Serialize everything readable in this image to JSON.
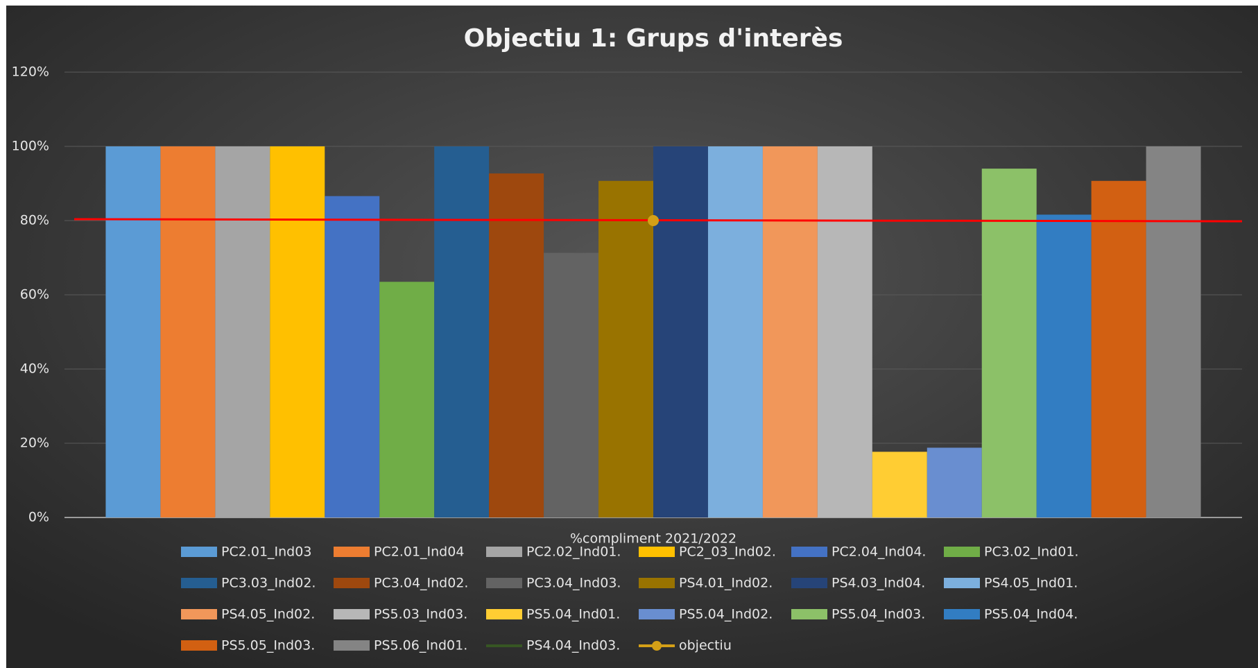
{
  "chart_data": {
    "type": "bar",
    "title": "Objectiu 1: Grups d'interès",
    "categories": [
      "%compliment 2021/2022"
    ],
    "ylim": [
      0,
      120
    ],
    "yticks": [
      {
        "value": 0,
        "label": "0%"
      },
      {
        "value": 20,
        "label": "20%"
      },
      {
        "value": 40,
        "label": "40%"
      },
      {
        "value": 60,
        "label": "60%"
      },
      {
        "value": 80,
        "label": "80%"
      },
      {
        "value": 100,
        "label": "100%"
      },
      {
        "value": 120,
        "label": "120%"
      }
    ],
    "grid": true,
    "legend": "bottom",
    "series": [
      {
        "name": "PC2.01_Ind03",
        "color": "#5b9bd5",
        "values": [
          100
        ]
      },
      {
        "name": "PC2.01_Ind04",
        "color": "#ed7d31",
        "values": [
          100
        ]
      },
      {
        "name": "PC2.02_Ind01.",
        "color": "#a5a5a5",
        "values": [
          100
        ]
      },
      {
        "name": "PC2_03_Ind02.",
        "color": "#ffc000",
        "values": [
          100
        ]
      },
      {
        "name": "PC2.04_Ind04.",
        "color": "#4472c4",
        "values": [
          86.6
        ]
      },
      {
        "name": "PC3.02_Ind01.",
        "color": "#70ad47",
        "values": [
          63.5
        ]
      },
      {
        "name": "PC3.03_Ind02.",
        "color": "#255e91",
        "values": [
          100
        ]
      },
      {
        "name": "PC3.04_Ind02.",
        "color": "#9e480e",
        "values": [
          92.7
        ]
      },
      {
        "name": "PC3.04_Ind03.",
        "color": "#636363",
        "values": [
          71.3
        ]
      },
      {
        "name": "PS4.01_Ind02.",
        "color": "#997300",
        "values": [
          90.7
        ]
      },
      {
        "name": "PS4.03_Ind04.",
        "color": "#264478",
        "values": [
          100
        ]
      },
      {
        "name": "PS4.05_Ind01.",
        "color": "#7cafdd",
        "values": [
          100
        ]
      },
      {
        "name": "PS4.05_Ind02.",
        "color": "#f1975a",
        "values": [
          100
        ]
      },
      {
        "name": "PS5.03_Ind03.",
        "color": "#b7b7b7",
        "values": [
          100
        ]
      },
      {
        "name": "PS5.04_Ind01.",
        "color": "#ffcd33",
        "values": [
          17.7
        ]
      },
      {
        "name": "PS5.04_Ind02.",
        "color": "#698ed0",
        "values": [
          18.8
        ]
      },
      {
        "name": "PS5.04_Ind03.",
        "color": "#8cc168",
        "values": [
          94
        ]
      },
      {
        "name": "PS5.04_Ind04.",
        "color": "#327dc2",
        "values": [
          81.6
        ]
      },
      {
        "name": "PS5.05_Ind03.",
        "color": "#d26012",
        "values": [
          90.7
        ]
      },
      {
        "name": "PS5.06_Ind01.",
        "color": "#848484",
        "values": [
          100
        ]
      },
      {
        "name": "PS4.04_Ind03.",
        "color": "#375623",
        "type": "line",
        "values": [
          null
        ]
      },
      {
        "name": "objectiu",
        "color": "#d4a017",
        "type": "line",
        "values": [
          80
        ]
      }
    ]
  }
}
